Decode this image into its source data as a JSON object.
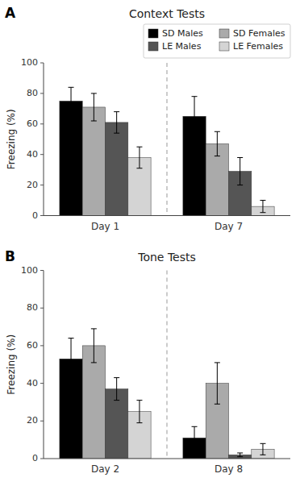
{
  "chart_data": [
    {
      "type": "bar",
      "title": "Context Tests",
      "annotations": [
        "A"
      ],
      "categories": [
        "Day 1",
        "Day 7"
      ],
      "series": [
        {
          "name": "SD Males",
          "color": "#000000",
          "values": [
            75,
            65
          ],
          "errors": [
            9,
            13
          ]
        },
        {
          "name": "SD Females",
          "color": "#aaaaaa",
          "values": [
            71,
            47
          ],
          "errors": [
            9,
            8
          ]
        },
        {
          "name": "LE Males",
          "color": "#555555",
          "values": [
            61,
            29
          ],
          "errors": [
            7,
            9
          ]
        },
        {
          "name": "LE Females",
          "color": "#d4d4d4",
          "values": [
            38,
            6
          ],
          "errors": [
            7,
            4
          ]
        }
      ],
      "y_label": "Freezing (%)",
      "ylim": [
        0,
        100
      ],
      "yticks": [
        0,
        20,
        40,
        60,
        80,
        100
      ],
      "grid": false,
      "legend": "upper right"
    },
    {
      "type": "bar",
      "title": "Tone Tests",
      "annotations": [
        "B"
      ],
      "categories": [
        "Day 2",
        "Day 8"
      ],
      "series": [
        {
          "color": "#000000",
          "values": [
            53,
            11
          ],
          "errors": [
            11,
            6
          ]
        },
        {
          "color": "#aaaaaa",
          "values": [
            60,
            40
          ],
          "errors": [
            9,
            11
          ]
        },
        {
          "color": "#555555",
          "values": [
            37,
            2
          ],
          "errors": [
            6,
            1
          ]
        },
        {
          "color": "#d4d4d4",
          "values": [
            25,
            5
          ],
          "errors": [
            6,
            3
          ]
        }
      ],
      "y_label": "Freezing (%)",
      "ylim": [
        0,
        100
      ],
      "yticks": [
        0,
        20,
        40,
        60,
        80,
        100
      ],
      "grid": false,
      "legend": false
    }
  ]
}
